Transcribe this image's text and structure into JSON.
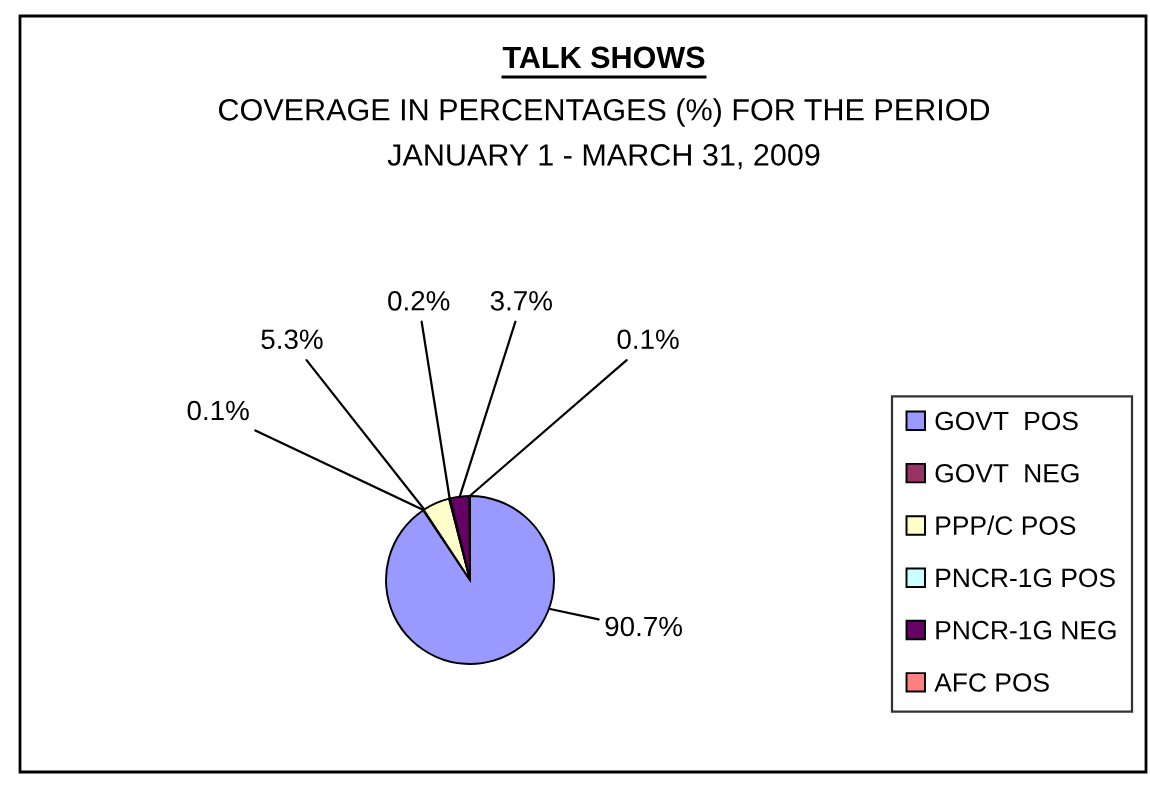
{
  "chart_data": {
    "type": "pie",
    "title": "TALK SHOWS",
    "subtitle": "COVERAGE IN PERCENTAGES (%) FOR THE PERIOD\nJANUARY 1 - MARCH 31, 2009",
    "categories": [
      "GOVT  POS",
      "GOVT  NEG",
      "PPP/C POS",
      "PNCR-1G POS",
      "PNCR-1G NEG",
      "AFC POS"
    ],
    "values": [
      90.7,
      0.1,
      5.3,
      0.2,
      3.7,
      0.1
    ],
    "colors": [
      "#9999ff",
      "#993366",
      "#ffffcc",
      "#ccffff",
      "#660066",
      "#ff8080"
    ],
    "value_labels": [
      "90.7%",
      "0.1%",
      "5.3%",
      "0.2%",
      "3.7%",
      "0.1%"
    ],
    "legend": "right"
  }
}
